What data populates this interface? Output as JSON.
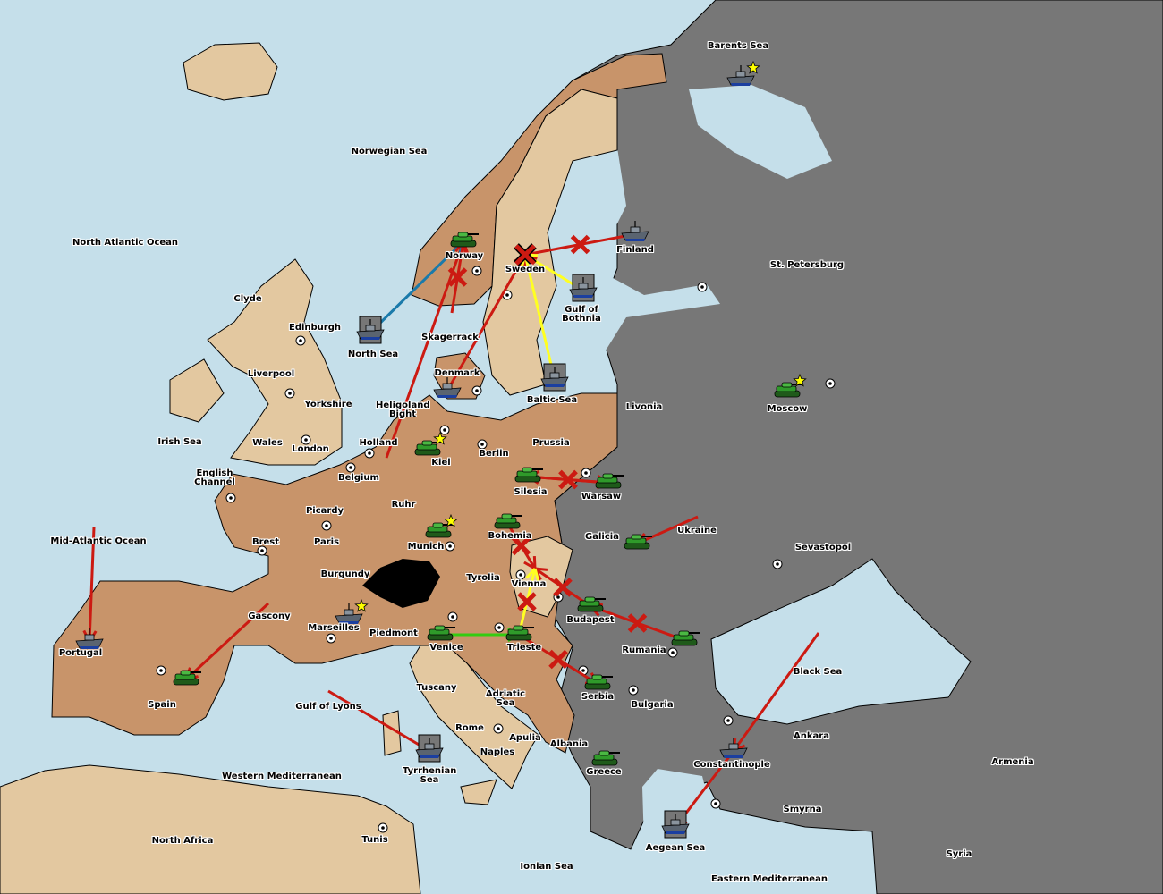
{
  "colors": {
    "sea": "#c5dfea",
    "neutral_land": "#e3c8a0",
    "owned_land": "#c8946a",
    "eastern_power": "#777777",
    "impassable": "#000000",
    "move_order": "#cc1a12",
    "support_order": "#ffff22",
    "support_order_alt": "#33cc11",
    "convoy_order": "#1a7aaa",
    "army": "#2f9a2a",
    "fleet": "#5a6470",
    "supply_star": "#ffff00"
  },
  "territories": [
    "Barents Sea",
    "Norwegian Sea",
    "North Atlantic Ocean",
    "Norway",
    "Sweden",
    "Finland",
    "St. Petersburg",
    "Clyde",
    "Edinburgh",
    "Gulf of Bothnia",
    "North Sea",
    "Skagerrack",
    "Liverpool",
    "Denmark",
    "Baltic Sea",
    "Yorkshire",
    "Heligoland Bight",
    "Livonia",
    "Moscow",
    "Irish Sea",
    "Wales",
    "London",
    "Holland",
    "Kiel",
    "Berlin",
    "Prussia",
    "English Channel",
    "Belgium",
    "Silesia",
    "Warsaw",
    "Picardy",
    "Ruhr",
    "Brest",
    "Paris",
    "Munich",
    "Bohemia",
    "Galicia",
    "Ukraine",
    "Sevastopol",
    "Mid-Atlantic Ocean",
    "Burgundy",
    "Tyrolia",
    "Vienna",
    "Gascony",
    "Marseilles",
    "Piedmont",
    "Budapest",
    "Venice",
    "Trieste",
    "Rumania",
    "Portugal",
    "Black Sea",
    "Spain",
    "Tuscany",
    "Adriatic Sea",
    "Serbia",
    "Bulgaria",
    "Gulf of Lyons",
    "Rome",
    "Apulia",
    "Ankara",
    "Armenia",
    "Naples",
    "Albania",
    "Constantinople",
    "Greece",
    "Western Mediterranean",
    "Tyrrhenian Sea",
    "Smyrna",
    "North Africa",
    "Tunis",
    "Aegean Sea",
    "Ionian Sea",
    "Eastern Mediterranean",
    "Syria"
  ],
  "units": [
    {
      "type": "fleet",
      "at": "Barents Sea",
      "star": true
    },
    {
      "type": "army",
      "at": "Norway"
    },
    {
      "type": "fleet",
      "at": "Finland"
    },
    {
      "type": "fleet",
      "at": "Gulf of Bothnia",
      "boxed": true
    },
    {
      "type": "fleet",
      "at": "North Sea",
      "boxed": true
    },
    {
      "type": "fleet",
      "at": "Baltic Sea",
      "boxed": true
    },
    {
      "type": "fleet",
      "at": "Denmark"
    },
    {
      "type": "army",
      "at": "Moscow",
      "star": true
    },
    {
      "type": "army",
      "at": "Kiel",
      "star": true
    },
    {
      "type": "army",
      "at": "Silesia"
    },
    {
      "type": "army",
      "at": "Warsaw"
    },
    {
      "type": "army",
      "at": "Munich",
      "star": true
    },
    {
      "type": "army",
      "at": "Bohemia"
    },
    {
      "type": "army",
      "at": "Galicia"
    },
    {
      "type": "fleet",
      "at": "Marseilles",
      "star": true
    },
    {
      "type": "army",
      "at": "Budapest"
    },
    {
      "type": "army",
      "at": "Venice"
    },
    {
      "type": "army",
      "at": "Trieste"
    },
    {
      "type": "army",
      "at": "Rumania"
    },
    {
      "type": "fleet",
      "at": "Portugal"
    },
    {
      "type": "army",
      "at": "Spain"
    },
    {
      "type": "army",
      "at": "Serbia"
    },
    {
      "type": "army",
      "at": "Greece"
    },
    {
      "type": "fleet",
      "at": "Tyrrhenian Sea",
      "boxed": true
    },
    {
      "type": "fleet",
      "at": "Constantinople"
    },
    {
      "type": "fleet",
      "at": "Aegean Sea",
      "boxed": true
    }
  ],
  "orders": [
    {
      "kind": "move",
      "from": "Finland",
      "to": "Sweden",
      "failed": true
    },
    {
      "kind": "move",
      "from": "Denmark",
      "to": "Sweden"
    },
    {
      "kind": "support",
      "from": "Gulf of Bothnia",
      "to": "Sweden"
    },
    {
      "kind": "support",
      "from": "Baltic Sea",
      "to": "Sweden"
    },
    {
      "kind": "move",
      "from": "Holland",
      "to": "Norway"
    },
    {
      "kind": "convoy",
      "from": "North Sea",
      "to": "Norway"
    },
    {
      "kind": "move",
      "from": "Skagerrack",
      "to": "Norway",
      "failed": true
    },
    {
      "kind": "move",
      "from": "Silesia",
      "to": "Warsaw",
      "failed": true
    },
    {
      "kind": "move",
      "from": "Warsaw",
      "to": "Silesia",
      "failed": true
    },
    {
      "kind": "move",
      "from": "Ukraine",
      "to": "Galicia"
    },
    {
      "kind": "move",
      "from": "Bohemia",
      "to": "Vienna",
      "failed": true
    },
    {
      "kind": "move",
      "from": "Budapest",
      "to": "Vienna",
      "failed": true
    },
    {
      "kind": "move",
      "from": "Rumania",
      "to": "Budapest",
      "failed": true
    },
    {
      "kind": "support",
      "from": "Trieste",
      "to": "Vienna",
      "failed": true
    },
    {
      "kind": "support_alt",
      "from": "Venice",
      "to": "Trieste"
    },
    {
      "kind": "move",
      "from": "Trieste",
      "to": "Serbia",
      "failed": true
    },
    {
      "kind": "move",
      "from": "Mid-Atlantic Ocean",
      "to": "Portugal"
    },
    {
      "kind": "move",
      "from": "Gascony",
      "to": "Spain"
    },
    {
      "kind": "move",
      "from": "Gulf of Lyons",
      "to": "Tyrrhenian Sea"
    },
    {
      "kind": "move",
      "from": "Black Sea",
      "to": "Constantinople"
    },
    {
      "kind": "move",
      "from": "Constantinople",
      "to": "Aegean Sea"
    }
  ],
  "dislodged_marker": "Sweden"
}
